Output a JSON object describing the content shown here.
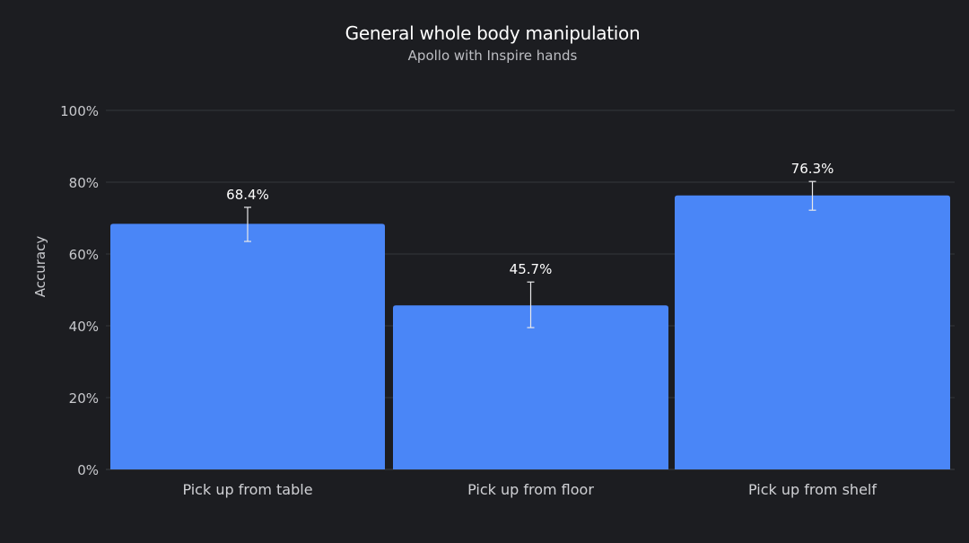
{
  "chart_data": {
    "type": "bar",
    "title": "General whole body manipulation",
    "subtitle": "Apollo with Inspire hands",
    "ylabel": "Accuracy",
    "xlabel": "",
    "categories": [
      "Pick up from table",
      "Pick up from floor",
      "Pick up from shelf"
    ],
    "values": [
      68.4,
      45.7,
      76.3
    ],
    "value_labels": [
      "68.4%",
      "45.7%",
      "76.3%"
    ],
    "error_low": [
      63.5,
      39.5,
      72.2
    ],
    "error_high": [
      73.0,
      52.2,
      80.2
    ],
    "ylim": [
      0,
      100
    ],
    "yticks": [
      0,
      20,
      40,
      60,
      80,
      100
    ],
    "ytick_labels": [
      "0%",
      "20%",
      "40%",
      "60%",
      "80%",
      "100%"
    ],
    "grid": true,
    "legend": "none",
    "colors": {
      "background": "#1c1d21",
      "bar": "#4a86f7",
      "grid": "#34363c",
      "error_bar": "#e8e8ea"
    }
  }
}
